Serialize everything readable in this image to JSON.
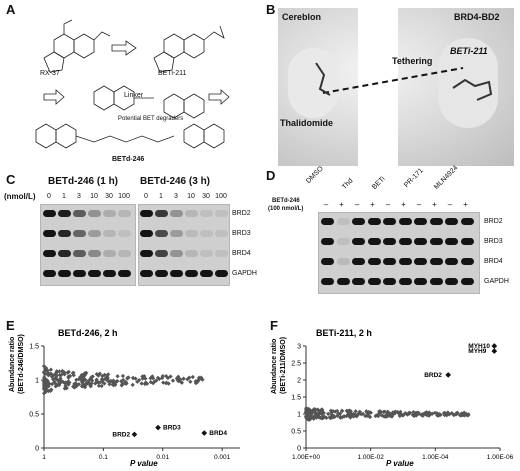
{
  "panels": {
    "A": {
      "letter": "A",
      "compounds": [
        "RX-37",
        "BETi-211",
        "BETd-246"
      ],
      "linker_label": "Linker",
      "degrader_label": "Potential BET degraders"
    },
    "B": {
      "letter": "B",
      "cereblon": "Cereblon",
      "brd4": "BRD4-BD2",
      "tethering": "Tethering",
      "beti": "BETi-211",
      "thalidomide": "Thalidomide"
    },
    "C": {
      "letter": "C",
      "title1": "BETd-246 (1 h)",
      "title2": "BETd-246 (3 h)",
      "unit": "(nmol/L)",
      "lanes": [
        "0",
        "1",
        "3",
        "10",
        "30",
        "100"
      ],
      "proteins": [
        "BRD2",
        "BRD3",
        "BRD4",
        "GAPDH"
      ]
    },
    "D": {
      "letter": "D",
      "treatment_line1": "BETd-246",
      "treatment_line2": "(100 nmol/L)",
      "groups": [
        "DMSO",
        "Thd",
        "BETi",
        "PR-171",
        "MLN4924"
      ],
      "minus": "–",
      "plus": "+",
      "proteins": [
        "BRD2",
        "BRD3",
        "BRD4",
        "GAPDH"
      ]
    },
    "E": {
      "letter": "E",
      "title": "BETd-246, 2 h",
      "ylabel_line1": "Abundance ratio",
      "ylabel_line2": "(BETd-246/DMSO)",
      "xlabel": "P value",
      "yticks": [
        "1.5",
        "1",
        "0.5",
        "0"
      ],
      "xticks": [
        "1",
        "0.1",
        "0.01",
        "0.001"
      ],
      "annotations": [
        "BRD3",
        "BRD2",
        "BRD4"
      ]
    },
    "F": {
      "letter": "F",
      "title": "BETi-211, 2 h",
      "ylabel_line1": "Abundance ratio",
      "ylabel_line2": "(BETi-211/DMSO)",
      "xlabel": "P value",
      "yticks": [
        "3",
        "2.5",
        "2",
        "1.5",
        "1",
        "0.5",
        "0"
      ],
      "xticks": [
        "1.00E+00",
        "1.00E-02",
        "1.00E-04",
        "1.00E-06"
      ],
      "annotations": [
        "MYH10",
        "MYH9",
        "BRD2"
      ]
    }
  },
  "chart_data": [
    {
      "type": "scatter",
      "title": "BETd-246, 2 h",
      "xlabel": "P value",
      "ylabel": "Abundance ratio (BETd-246/DMSO)",
      "x_scale": "log-reversed",
      "xlim": [
        1,
        0.0005
      ],
      "ylim": [
        0,
        1.5
      ],
      "labeled_points": [
        {
          "name": "BRD3",
          "x": 0.012,
          "y": 0.3
        },
        {
          "name": "BRD2",
          "x": 0.03,
          "y": 0.2
        },
        {
          "name": "BRD4",
          "x": 0.002,
          "y": 0.22
        }
      ]
    },
    {
      "type": "scatter",
      "title": "BETi-211, 2 h",
      "xlabel": "P value",
      "ylabel": "Abundance ratio (BETi-211/DMSO)",
      "x_scale": "log-reversed",
      "xlim": [
        1,
        1e-06
      ],
      "ylim": [
        0,
        3
      ],
      "labeled_points": [
        {
          "name": "MYH10",
          "x": 1.5e-06,
          "y": 3.0
        },
        {
          "name": "MYH9",
          "x": 1.5e-06,
          "y": 2.85
        },
        {
          "name": "BRD2",
          "x": 4e-05,
          "y": 2.15
        }
      ]
    }
  ]
}
